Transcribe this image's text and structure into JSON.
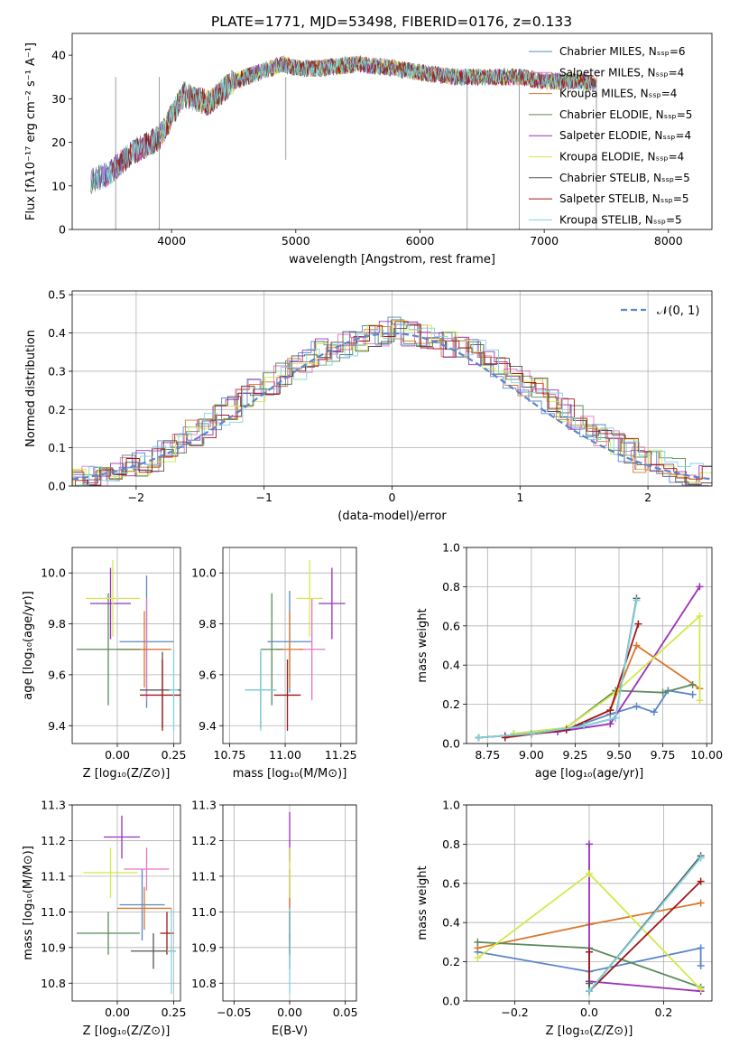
{
  "chart_data": [
    {
      "type": "line",
      "title": "PLATE=1771, MJD=53498, FIBERID=0176, z=0.133",
      "xlabel": "wavelength [Angstrom, rest frame]",
      "ylabel": "Flux [fλ10⁻¹⁷ erg cm⁻² s⁻¹ A⁻¹]",
      "xlim": [
        3200,
        8350
      ],
      "ylim": [
        0,
        45
      ],
      "xticks": [
        "4000",
        "5000",
        "6000",
        "7000",
        "8000"
      ],
      "yticks": [
        "0",
        "10",
        "20",
        "30",
        "40"
      ],
      "grid": false,
      "legend": "top-right",
      "spectrum_x": [
        3350,
        3500,
        3700,
        3900,
        4000,
        4100,
        4300,
        4500,
        4700,
        4900,
        5000,
        5200,
        5500,
        5800,
        6000,
        6300,
        6500,
        6800,
        7000,
        7300,
        7500
      ],
      "spectrum_y": [
        11,
        13,
        18,
        21,
        26,
        31,
        29,
        34,
        36,
        38,
        37,
        37,
        38,
        37,
        36,
        35,
        35,
        35,
        34,
        34,
        33
      ],
      "series": [
        {
          "name": "Chabrier MILES, Nₛₛₚ=6",
          "color": "#5b86c8"
        },
        {
          "name": "Salpeter MILES, Nₛₛₚ=4",
          "color": "#e377c2"
        },
        {
          "name": "Kroupa MILES, Nₛₛₚ=4",
          "color": "#d9782d"
        },
        {
          "name": "Chabrier ELODIE, Nₛₛₚ=5",
          "color": "#5a8a5a"
        },
        {
          "name": "Salpeter ELODIE, Nₛₛₚ=4",
          "color": "#9b30b8"
        },
        {
          "name": "Kroupa ELODIE, Nₛₛₚ=4",
          "color": "#d4e84a"
        },
        {
          "name": "Chabrier STELIB, Nₛₛₚ=5",
          "color": "#555555"
        },
        {
          "name": "Salpeter STELIB, Nₛₛₚ=5",
          "color": "#a01818"
        },
        {
          "name": "Kroupa STELIB, Nₛₛₚ=5",
          "color": "#7fd3dd"
        }
      ]
    },
    {
      "type": "bar",
      "xlabel": "(data-model)/error",
      "ylabel": "Normed distribution",
      "xlim": [
        -2.5,
        2.5
      ],
      "ylim": [
        0,
        0.51
      ],
      "xticks": [
        "−2",
        "−1",
        "0",
        "1",
        "2"
      ],
      "yticks": [
        "0.0",
        "0.1",
        "0.2",
        "0.3",
        "0.4",
        "0.5"
      ],
      "grid": true,
      "legend": "top-right",
      "reference": {
        "name": "𝒩(0, 1)",
        "color": "#5b86c8",
        "style": "dashed"
      },
      "bin_width": 0.1,
      "bin_start": -2.5,
      "hist": [
        0.02,
        0.02,
        0.03,
        0.04,
        0.05,
        0.06,
        0.07,
        0.09,
        0.11,
        0.14,
        0.16,
        0.18,
        0.2,
        0.23,
        0.25,
        0.27,
        0.29,
        0.31,
        0.33,
        0.35,
        0.36,
        0.37,
        0.38,
        0.39,
        0.4,
        0.41,
        0.4,
        0.39,
        0.38,
        0.37,
        0.36,
        0.35,
        0.33,
        0.31,
        0.29,
        0.27,
        0.25,
        0.22,
        0.2,
        0.18,
        0.15,
        0.13,
        0.11,
        0.09,
        0.07,
        0.06,
        0.05,
        0.04,
        0.03,
        0.02
      ]
    },
    {
      "type": "scatter",
      "xlabel": "Z [log₁₀(Z/Z⊙)]",
      "ylabel": "age  [log₁₀(age/yr)]",
      "xlim": [
        -0.2,
        0.28
      ],
      "ylim": [
        9.33,
        10.1
      ],
      "xticks": [
        "0.00",
        "0.25"
      ],
      "yticks": [
        "9.4",
        "9.6",
        "9.8",
        "10.0"
      ],
      "grid": true,
      "points": [
        {
          "x": 0.13,
          "y": 9.73,
          "xerr": 0.12,
          "yerr": 0.26,
          "color": "#5b86c8"
        },
        {
          "x": 0.13,
          "y": 9.7,
          "xerr": 0.1,
          "yerr": 0.2,
          "color": "#e377c2"
        },
        {
          "x": 0.12,
          "y": 9.7,
          "xerr": 0.12,
          "yerr": 0.15,
          "color": "#d9782d"
        },
        {
          "x": -0.04,
          "y": 9.7,
          "xerr": 0.14,
          "yerr": 0.22,
          "color": "#5a8a5a"
        },
        {
          "x": -0.03,
          "y": 9.88,
          "xerr": 0.09,
          "yerr": 0.14,
          "color": "#9b30b8"
        },
        {
          "x": -0.02,
          "y": 9.9,
          "xerr": 0.12,
          "yerr": 0.15,
          "color": "#d4e84a"
        },
        {
          "x": 0.2,
          "y": 9.54,
          "xerr": 0.1,
          "yerr": 0.15,
          "color": "#555555"
        },
        {
          "x": 0.2,
          "y": 9.52,
          "xerr": 0.1,
          "yerr": 0.14,
          "color": "#a01818"
        },
        {
          "x": 0.25,
          "y": 9.54,
          "xerr": 0.02,
          "yerr": 0.16,
          "color": "#7fd3dd"
        }
      ]
    },
    {
      "type": "scatter",
      "xlabel": "mass [log₁₀(M/M⊙)]",
      "ylabel": "",
      "xlim": [
        10.72,
        11.32
      ],
      "ylim": [
        9.33,
        10.1
      ],
      "xticks": [
        "10.75",
        "11.00",
        "11.25"
      ],
      "yticks": [
        "9.4",
        "9.6",
        "9.8",
        "10.0"
      ],
      "grid": true,
      "points": [
        {
          "x": 11.02,
          "y": 9.73,
          "xerr": 0.1,
          "yerr": 0.2,
          "color": "#5b86c8"
        },
        {
          "x": 11.12,
          "y": 9.7,
          "xerr": 0.06,
          "yerr": 0.2,
          "color": "#e377c2"
        },
        {
          "x": 11.02,
          "y": 9.7,
          "xerr": 0.06,
          "yerr": 0.15,
          "color": "#d9782d"
        },
        {
          "x": 10.94,
          "y": 9.7,
          "xerr": 0.05,
          "yerr": 0.22,
          "color": "#5a8a5a"
        },
        {
          "x": 11.21,
          "y": 9.88,
          "xerr": 0.06,
          "yerr": 0.14,
          "color": "#9b30b8"
        },
        {
          "x": 11.11,
          "y": 9.9,
          "xerr": 0.06,
          "yerr": 0.15,
          "color": "#d4e84a"
        },
        {
          "x": 10.89,
          "y": 9.54,
          "xerr": 0.07,
          "yerr": 0.15,
          "color": "#555555"
        },
        {
          "x": 11.01,
          "y": 9.52,
          "xerr": 0.06,
          "yerr": 0.14,
          "color": "#a01818"
        },
        {
          "x": 10.89,
          "y": 9.54,
          "xerr": 0.07,
          "yerr": 0.16,
          "color": "#7fd3dd"
        }
      ]
    },
    {
      "type": "line",
      "xlabel": "age  [log₁₀(age/yr)]",
      "ylabel": "mass weight",
      "xlim": [
        8.63,
        10.03
      ],
      "ylim": [
        0,
        1
      ],
      "xticks": [
        "8.75",
        "9.00",
        "9.25",
        "9.50",
        "9.75",
        "10.00"
      ],
      "yticks": [
        "0.0",
        "0.2",
        "0.4",
        "0.6",
        "0.8",
        "1.0"
      ],
      "grid": true,
      "series": [
        {
          "color": "#5b86c8",
          "x": [
            8.7,
            9.0,
            9.2,
            9.45,
            9.6,
            9.7,
            9.78,
            9.92
          ],
          "y": [
            0.03,
            0.05,
            0.07,
            0.15,
            0.19,
            0.16,
            0.27,
            0.25
          ]
        },
        {
          "color": "#d9782d",
          "x": [
            8.7,
            9.0,
            9.2,
            9.45,
            9.6,
            9.96
          ],
          "y": [
            0.03,
            0.05,
            0.07,
            0.17,
            0.5,
            0.28
          ]
        },
        {
          "color": "#5a8a5a",
          "x": [
            8.9,
            9.2,
            9.48,
            9.75,
            9.92
          ],
          "y": [
            0.05,
            0.08,
            0.27,
            0.26,
            0.3
          ]
        },
        {
          "color": "#9b30b8",
          "x": [
            8.85,
            9.15,
            9.45,
            9.96
          ],
          "y": [
            0.04,
            0.06,
            0.1,
            0.8
          ]
        },
        {
          "color": "#d4e84a",
          "x": [
            8.9,
            9.2,
            9.48,
            9.96,
            9.96
          ],
          "y": [
            0.05,
            0.08,
            0.26,
            0.65,
            0.22
          ]
        },
        {
          "color": "#a01818",
          "x": [
            8.85,
            9.2,
            9.45,
            9.61
          ],
          "y": [
            0.03,
            0.07,
            0.17,
            0.61
          ]
        },
        {
          "color": "#555555",
          "x": [
            8.7,
            9.0,
            9.3,
            9.48,
            9.6
          ],
          "y": [
            0.03,
            0.05,
            0.09,
            0.13,
            0.74
          ]
        },
        {
          "color": "#7fd3dd",
          "x": [
            8.7,
            9.0,
            9.3,
            9.48,
            9.6
          ],
          "y": [
            0.03,
            0.05,
            0.09,
            0.13,
            0.73
          ]
        }
      ]
    },
    {
      "type": "scatter",
      "xlabel": "Z [log₁₀(Z/Z⊙)]",
      "ylabel": "mass [log₁₀(M/M⊙)]",
      "xlim": [
        -0.2,
        0.28
      ],
      "ylim": [
        10.75,
        11.3
      ],
      "xticks": [
        "0.00",
        "0.25"
      ],
      "yticks": [
        "10.8",
        "10.9",
        "11.0",
        "11.1",
        "11.2",
        "11.3"
      ],
      "grid": true,
      "points": [
        {
          "x": 0.11,
          "y": 11.02,
          "xerr": 0.1,
          "yerr": 0.1,
          "color": "#5b86c8"
        },
        {
          "x": 0.13,
          "y": 11.12,
          "xerr": 0.1,
          "yerr": 0.06,
          "color": "#e377c2"
        },
        {
          "x": 0.12,
          "y": 11.01,
          "xerr": 0.12,
          "yerr": 0.06,
          "color": "#d9782d"
        },
        {
          "x": -0.04,
          "y": 10.94,
          "xerr": 0.14,
          "yerr": 0.06,
          "color": "#5a8a5a"
        },
        {
          "x": 0.02,
          "y": 11.21,
          "xerr": 0.08,
          "yerr": 0.06,
          "color": "#9b30b8"
        },
        {
          "x": -0.03,
          "y": 11.11,
          "xerr": 0.12,
          "yerr": 0.07,
          "color": "#d4e84a"
        },
        {
          "x": 0.16,
          "y": 10.89,
          "xerr": 0.1,
          "yerr": 0.05,
          "color": "#555555"
        },
        {
          "x": 0.22,
          "y": 10.94,
          "xerr": 0.03,
          "yerr": 0.06,
          "color": "#a01818"
        },
        {
          "x": 0.24,
          "y": 10.89,
          "xerr": 0.02,
          "yerr": 0.12,
          "color": "#7fd3dd"
        }
      ]
    },
    {
      "type": "scatter",
      "xlabel": "E(B-V)",
      "ylabel": "",
      "xlim": [
        -0.06,
        0.06
      ],
      "ylim": [
        10.75,
        11.3
      ],
      "xticks": [
        "−0.05",
        "0.00",
        "0.05"
      ],
      "yticks": [
        "10.8",
        "10.9",
        "11.0",
        "11.1",
        "11.2",
        "11.3"
      ],
      "grid": true,
      "points": [
        {
          "x": 0.0,
          "y": 11.02,
          "xerr": 0,
          "yerr": 0.1,
          "color": "#5b86c8"
        },
        {
          "x": 0.0,
          "y": 11.12,
          "xerr": 0,
          "yerr": 0.06,
          "color": "#e377c2"
        },
        {
          "x": 0.0,
          "y": 11.01,
          "xerr": 0,
          "yerr": 0.06,
          "color": "#d9782d"
        },
        {
          "x": 0.0,
          "y": 10.94,
          "xerr": 0,
          "yerr": 0.06,
          "color": "#5a8a5a"
        },
        {
          "x": 0.0,
          "y": 11.21,
          "xerr": 0,
          "yerr": 0.07,
          "color": "#9b30b8"
        },
        {
          "x": 0.0,
          "y": 11.11,
          "xerr": 0,
          "yerr": 0.07,
          "color": "#d4e84a"
        },
        {
          "x": 0.0,
          "y": 10.89,
          "xerr": 0,
          "yerr": 0.05,
          "color": "#555555"
        },
        {
          "x": 0.0,
          "y": 10.94,
          "xerr": 0,
          "yerr": 0.06,
          "color": "#a01818"
        },
        {
          "x": 0.0,
          "y": 10.89,
          "xerr": 0,
          "yerr": 0.12,
          "color": "#7fd3dd"
        }
      ]
    },
    {
      "type": "line",
      "xlabel": "Z [log₁₀(Z/Z⊙)]",
      "ylabel": "mass weight",
      "xlim": [
        -0.33,
        0.33
      ],
      "ylim": [
        0,
        1
      ],
      "xticks": [
        "−0.2",
        "0.0",
        "0.2"
      ],
      "yticks": [
        "0.0",
        "0.2",
        "0.4",
        "0.6",
        "0.8",
        "1.0"
      ],
      "grid": true,
      "series": [
        {
          "color": "#5b86c8",
          "x": [
            -0.3,
            0.0,
            0.3,
            0.3
          ],
          "y": [
            0.25,
            0.15,
            0.27,
            0.18
          ]
        },
        {
          "color": "#d9782d",
          "x": [
            -0.3,
            0.0,
            0.3
          ],
          "y": [
            0.27,
            0.39,
            0.5
          ]
        },
        {
          "color": "#5a8a5a",
          "x": [
            -0.3,
            0.0,
            0.3
          ],
          "y": [
            0.3,
            0.27,
            0.07
          ]
        },
        {
          "color": "#9b30b8",
          "x": [
            0.0,
            0.0,
            0.3
          ],
          "y": [
            0.8,
            0.1,
            0.05
          ]
        },
        {
          "color": "#d4e84a",
          "x": [
            -0.3,
            0.0,
            0.3
          ],
          "y": [
            0.22,
            0.65,
            0.06
          ]
        },
        {
          "color": "#a01818",
          "x": [
            0.0,
            0.0,
            0.3
          ],
          "y": [
            0.25,
            0.05,
            0.61
          ]
        },
        {
          "color": "#555555",
          "x": [
            0.0,
            0.0,
            0.3
          ],
          "y": [
            0.09,
            0.05,
            0.74
          ]
        },
        {
          "color": "#7fd3dd",
          "x": [
            0.0,
            0.3
          ],
          "y": [
            0.05,
            0.73
          ]
        }
      ]
    }
  ]
}
